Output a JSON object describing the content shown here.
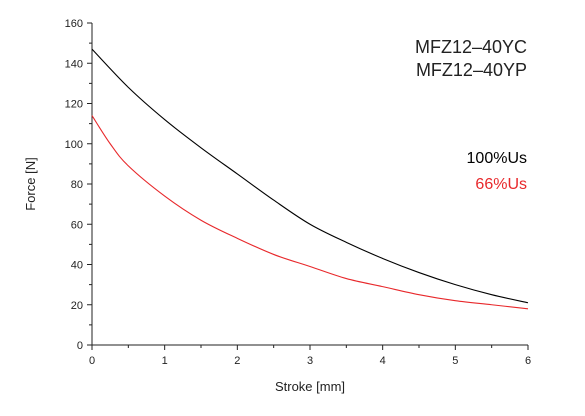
{
  "chart_data": {
    "type": "line",
    "xlabel": "Stroke [mm]",
    "ylabel": "Force [N]",
    "xlim": [
      0,
      6
    ],
    "ylim": [
      0,
      160
    ],
    "xticks": [
      "0",
      "1",
      "2",
      "3",
      "4",
      "5",
      "6"
    ],
    "yticks": [
      "0",
      "20",
      "40",
      "60",
      "80",
      "100",
      "120",
      "140",
      "160"
    ],
    "grid": false,
    "model_labels": [
      "MFZ12–40YC",
      "MFZ12–40YP"
    ],
    "series": [
      {
        "name": "100%Us",
        "color": "#000000",
        "x": [
          0,
          0.5,
          1,
          1.5,
          2,
          2.5,
          3,
          3.5,
          4,
          4.5,
          5,
          5.5,
          6
        ],
        "y": [
          147,
          128,
          112,
          98,
          85,
          72,
          60,
          51,
          43,
          36,
          30,
          25,
          21
        ]
      },
      {
        "name": "66%Us",
        "color": "#e8282b",
        "x": [
          0,
          0.25,
          0.5,
          1,
          1.5,
          2,
          2.5,
          3,
          3.5,
          4,
          4.5,
          5,
          5.5,
          6
        ],
        "y": [
          114,
          100,
          89,
          74,
          62,
          53,
          45,
          39,
          33,
          29,
          25,
          22,
          20,
          18
        ]
      }
    ]
  }
}
